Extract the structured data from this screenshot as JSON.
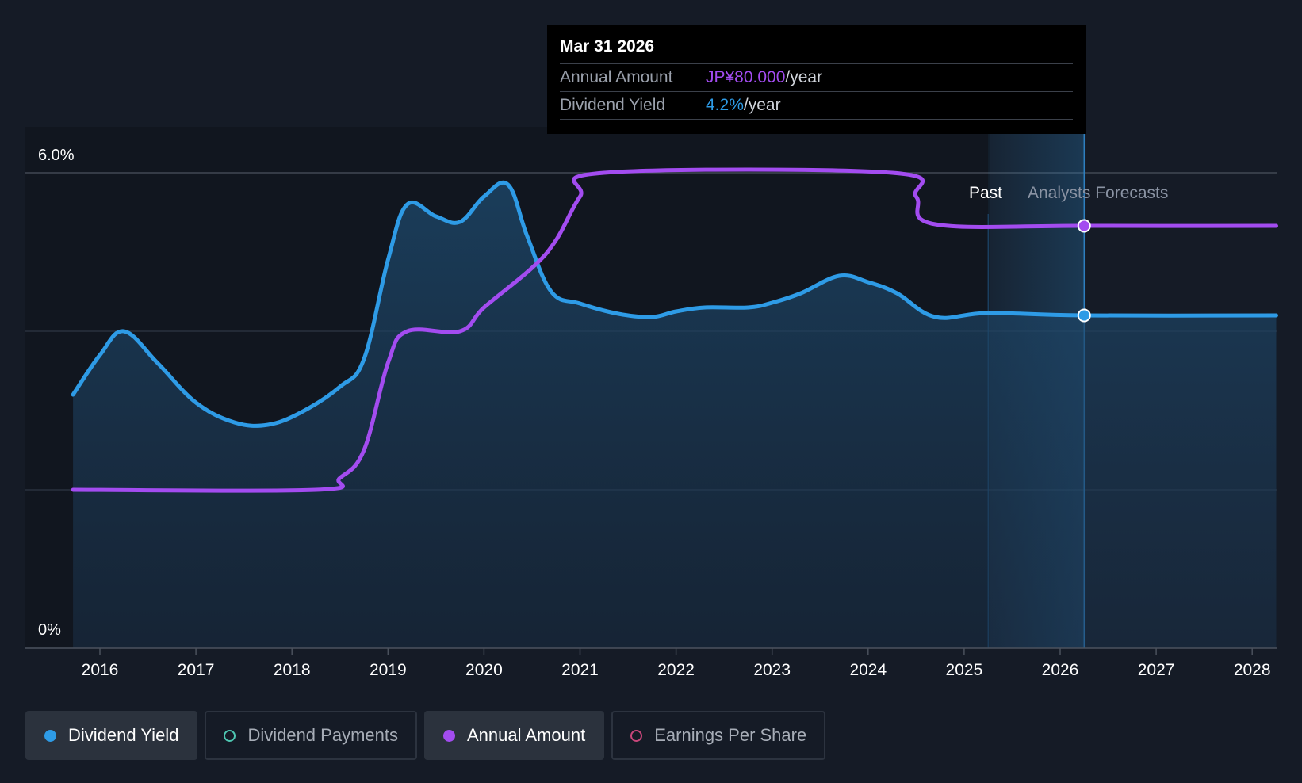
{
  "tooltip": {
    "date": "Mar 31 2026",
    "rows": [
      {
        "label": "Annual Amount",
        "value": "JP¥80.000",
        "unit": "/year"
      },
      {
        "label": "Dividend Yield",
        "value": "4.2%",
        "unit": "/year"
      }
    ]
  },
  "regions": {
    "past": "Past",
    "forecast": "Analysts Forecasts"
  },
  "legend": [
    {
      "label": "Dividend Yield",
      "color": "#2e9be6",
      "active": true,
      "filled": true
    },
    {
      "label": "Dividend Payments",
      "color": "#4ec7b2",
      "active": false,
      "filled": false
    },
    {
      "label": "Annual Amount",
      "color": "#a34cf0",
      "active": true,
      "filled": true
    },
    {
      "label": "Earnings Per Share",
      "color": "#c8467a",
      "active": false,
      "filled": false
    }
  ],
  "chart_data": {
    "type": "line",
    "ylim": [
      0,
      6.0
    ],
    "y_tick_labels": [
      "0%",
      "6.0%"
    ],
    "x_ticks": [
      2016,
      2017,
      2018,
      2019,
      2020,
      2021,
      2022,
      2023,
      2024,
      2025,
      2026,
      2027,
      2028
    ],
    "xlim": [
      2015.75,
      2028.25
    ],
    "grid": true,
    "forecast_start": 2025.25,
    "highlight_x": 2026.25,
    "series": [
      {
        "name": "Dividend Yield",
        "color": "#2e9be6",
        "area": true,
        "points": [
          [
            2015.72,
            3.2
          ],
          [
            2016.0,
            3.7
          ],
          [
            2016.25,
            4.0
          ],
          [
            2016.6,
            3.6
          ],
          [
            2017.0,
            3.1
          ],
          [
            2017.4,
            2.85
          ],
          [
            2017.75,
            2.82
          ],
          [
            2018.1,
            2.98
          ],
          [
            2018.5,
            3.3
          ],
          [
            2018.75,
            3.65
          ],
          [
            2019.0,
            4.9
          ],
          [
            2019.2,
            5.6
          ],
          [
            2019.5,
            5.45
          ],
          [
            2019.75,
            5.38
          ],
          [
            2020.0,
            5.7
          ],
          [
            2020.25,
            5.85
          ],
          [
            2020.45,
            5.2
          ],
          [
            2020.7,
            4.5
          ],
          [
            2021.0,
            4.35
          ],
          [
            2021.4,
            4.22
          ],
          [
            2021.75,
            4.18
          ],
          [
            2022.0,
            4.25
          ],
          [
            2022.3,
            4.3
          ],
          [
            2022.75,
            4.3
          ],
          [
            2023.0,
            4.36
          ],
          [
            2023.3,
            4.48
          ],
          [
            2023.7,
            4.7
          ],
          [
            2024.0,
            4.62
          ],
          [
            2024.3,
            4.48
          ],
          [
            2024.7,
            4.18
          ],
          [
            2025.25,
            4.23
          ],
          [
            2026.25,
            4.2
          ],
          [
            2028.25,
            4.2
          ]
        ]
      },
      {
        "name": "Annual Amount",
        "color": "#a34cf0",
        "area": false,
        "points": [
          [
            2015.72,
            2.0
          ],
          [
            2018.25,
            2.0
          ],
          [
            2018.5,
            2.15
          ],
          [
            2018.75,
            2.5
          ],
          [
            2019.0,
            3.6
          ],
          [
            2019.2,
            4.0
          ],
          [
            2019.75,
            4.0
          ],
          [
            2020.0,
            4.3
          ],
          [
            2020.5,
            4.8
          ],
          [
            2020.75,
            5.15
          ],
          [
            2021.0,
            5.7
          ],
          [
            2021.25,
            6.0
          ],
          [
            2024.25,
            6.0
          ],
          [
            2024.5,
            5.7
          ],
          [
            2024.7,
            5.35
          ],
          [
            2026.25,
            5.33
          ],
          [
            2028.25,
            5.33
          ]
        ]
      }
    ]
  }
}
